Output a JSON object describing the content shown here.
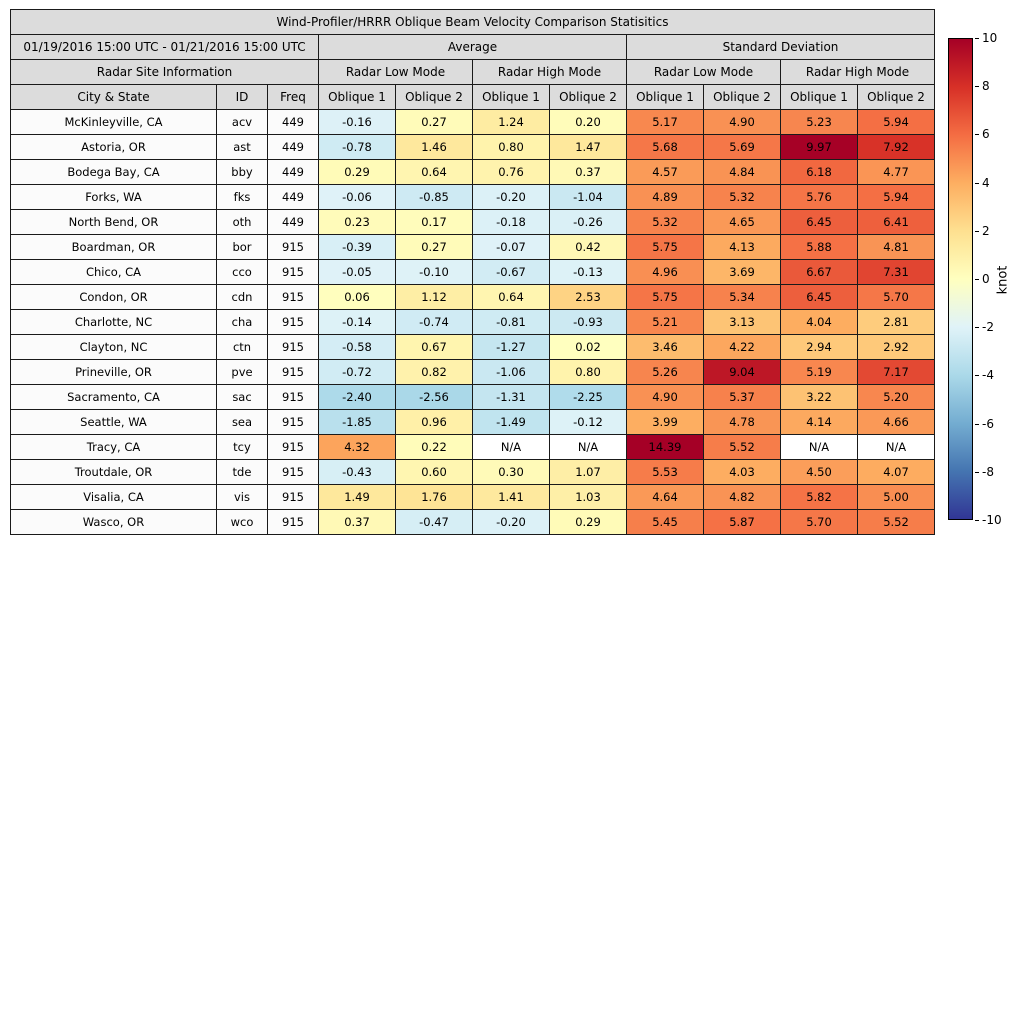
{
  "chart_data": {
    "type": "heatmap",
    "title": "Wind-Profiler/HRRR Oblique Beam Velocity Comparison Statisitics",
    "date_range": "01/19/2016 15:00 UTC - 01/21/2016 15:00 UTC",
    "groups": [
      "Average",
      "Standard Deviation"
    ],
    "site_info_label": "Radar Site Information",
    "mode_labels": [
      "Radar Low Mode",
      "Radar High Mode",
      "Radar Low Mode",
      "Radar High Mode"
    ],
    "col_labels": [
      "City & State",
      "ID",
      "Freq",
      "Oblique 1",
      "Oblique 2",
      "Oblique 1",
      "Oblique 2",
      "Oblique 1",
      "Oblique 2",
      "Oblique 1",
      "Oblique 2"
    ],
    "na_label": "N/A",
    "header_bg": "#dcdcdc",
    "na_bg": "#ffffff",
    "colorbar": {
      "label": "knot",
      "vmin": -10,
      "vmax": 10,
      "ticks": [
        10,
        8,
        6,
        4,
        2,
        0,
        -2,
        -4,
        -6,
        -8,
        -10
      ],
      "gradient_bottom_to_top": [
        "#313695",
        "#4575b1",
        "#74add1",
        "#abd9e9",
        "#e0f3f8",
        "#ffffbf",
        "#fee090",
        "#fdae61",
        "#f46d43",
        "#d73027",
        "#a50026"
      ],
      "positive_stops": [
        "#ffffbf",
        "#fee090",
        "#fdae61",
        "#f46d43",
        "#d73027",
        "#a50026"
      ],
      "positive_step": 2,
      "negative_stops": [
        "#e0f3f8",
        "#abd9e9",
        "#74add1",
        "#4575b1",
        "#313695"
      ],
      "negative_step": 2.5
    },
    "rows": [
      {
        "city": "McKinleyville, CA",
        "id": "acv",
        "freq": "449",
        "values": [
          -0.16,
          0.27,
          1.24,
          0.2,
          5.17,
          4.9,
          5.23,
          5.94
        ]
      },
      {
        "city": "Astoria, OR",
        "id": "ast",
        "freq": "449",
        "values": [
          -0.78,
          1.46,
          0.8,
          1.47,
          5.68,
          5.69,
          9.97,
          7.92
        ]
      },
      {
        "city": "Bodega Bay, CA",
        "id": "bby",
        "freq": "449",
        "values": [
          0.29,
          0.64,
          0.76,
          0.37,
          4.57,
          4.84,
          6.18,
          4.77
        ]
      },
      {
        "city": "Forks, WA",
        "id": "fks",
        "freq": "449",
        "values": [
          -0.06,
          -0.85,
          -0.2,
          -1.04,
          4.89,
          5.32,
          5.76,
          5.94
        ]
      },
      {
        "city": "North Bend, OR",
        "id": "oth",
        "freq": "449",
        "values": [
          0.23,
          0.17,
          -0.18,
          -0.26,
          5.32,
          4.65,
          6.45,
          6.41
        ]
      },
      {
        "city": "Boardman, OR",
        "id": "bor",
        "freq": "915",
        "values": [
          -0.39,
          0.27,
          -0.07,
          0.42,
          5.75,
          4.13,
          5.88,
          4.81
        ]
      },
      {
        "city": "Chico, CA",
        "id": "cco",
        "freq": "915",
        "values": [
          -0.05,
          -0.1,
          -0.67,
          -0.13,
          4.96,
          3.69,
          6.67,
          7.31
        ]
      },
      {
        "city": "Condon, OR",
        "id": "cdn",
        "freq": "915",
        "values": [
          0.06,
          1.12,
          0.64,
          2.53,
          5.75,
          5.34,
          6.45,
          5.7
        ]
      },
      {
        "city": "Charlotte, NC",
        "id": "cha",
        "freq": "915",
        "values": [
          -0.14,
          -0.74,
          -0.81,
          -0.93,
          5.21,
          3.13,
          4.04,
          2.81
        ]
      },
      {
        "city": "Clayton, NC",
        "id": "ctn",
        "freq": "915",
        "values": [
          -0.58,
          0.67,
          -1.27,
          0.02,
          3.46,
          4.22,
          2.94,
          2.92
        ]
      },
      {
        "city": "Prineville, OR",
        "id": "pve",
        "freq": "915",
        "values": [
          -0.72,
          0.82,
          -1.06,
          0.8,
          5.26,
          9.04,
          5.19,
          7.17
        ]
      },
      {
        "city": "Sacramento, CA",
        "id": "sac",
        "freq": "915",
        "values": [
          -2.4,
          -2.56,
          -1.31,
          -2.25,
          4.9,
          5.37,
          3.22,
          5.2
        ]
      },
      {
        "city": "Seattle, WA",
        "id": "sea",
        "freq": "915",
        "values": [
          -1.85,
          0.96,
          -1.49,
          -0.12,
          3.99,
          4.78,
          4.14,
          4.66
        ]
      },
      {
        "city": "Tracy, CA",
        "id": "tcy",
        "freq": "915",
        "values": [
          4.32,
          0.22,
          null,
          null,
          14.39,
          5.52,
          null,
          null
        ]
      },
      {
        "city": "Troutdale, OR",
        "id": "tde",
        "freq": "915",
        "values": [
          -0.43,
          0.6,
          0.3,
          1.07,
          5.53,
          4.03,
          4.5,
          4.07
        ]
      },
      {
        "city": "Visalia, CA",
        "id": "vis",
        "freq": "915",
        "values": [
          1.49,
          1.76,
          1.41,
          1.03,
          4.64,
          4.82,
          5.82,
          5.0
        ]
      },
      {
        "city": "Wasco, OR",
        "id": "wco",
        "freq": "915",
        "values": [
          0.37,
          -0.47,
          -0.2,
          0.29,
          5.45,
          5.87,
          5.7,
          5.52
        ]
      }
    ]
  }
}
